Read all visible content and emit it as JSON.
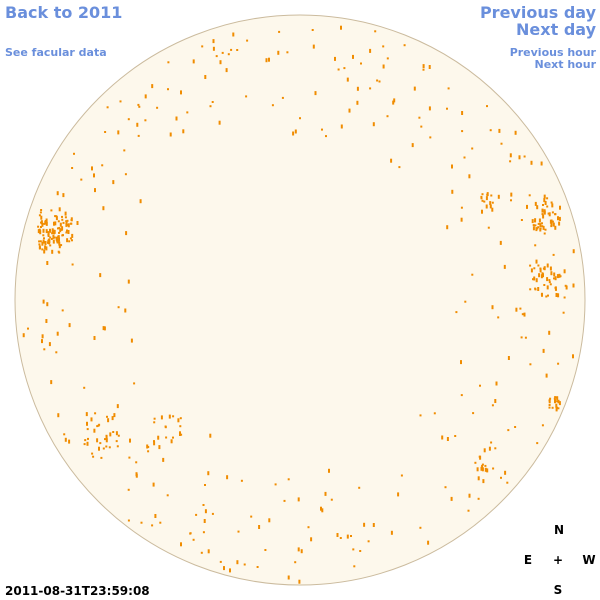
{
  "nav": {
    "back": "Back to 2011",
    "facular": "See facular data",
    "previous_day": "Previous day",
    "next_day": "Next day",
    "previous_hour": "Previous hour",
    "next_hour": "Next hour"
  },
  "timestamp": "2011-08-31T23:59:08",
  "compass": {
    "north": "N",
    "east": "E",
    "center": "+",
    "west": "W",
    "south": "S"
  }
}
